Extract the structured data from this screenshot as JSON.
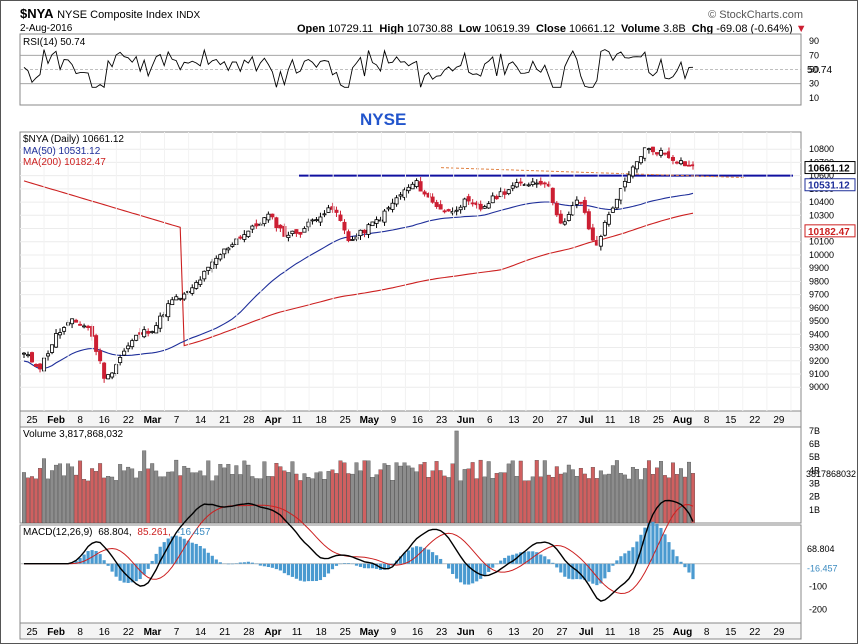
{
  "header": {
    "symbol": "$NYA",
    "name": "NYSE Composite Index",
    "exchange": "INDX",
    "date": "2-Aug-2016",
    "watermark": "© StockCharts.com",
    "open_label": "Open",
    "open": "10729.11",
    "high_label": "High",
    "high": "10730.88",
    "low_label": "Low",
    "low": "10619.39",
    "close_label": "Close",
    "close": "10661.12",
    "volume_label": "Volume",
    "volume": "3.8B",
    "chg_label": "Chg",
    "chg": "-69.08 (-0.64%)"
  },
  "annotation": "NYSE",
  "colors": {
    "up": "#000000",
    "down": "#cc1f33",
    "ma50": "#1f2f9a",
    "ma200": "#cc2020",
    "resistance": "#1010a0",
    "vol_up": "#8c8c8c",
    "vol_down": "#d06060",
    "macd_hist": "#4a9ad0",
    "bg": "#ffffff"
  },
  "chart_data": [
    {
      "type": "line",
      "title": "RSI(14) 50.74",
      "y_ticks": [
        "90",
        "70",
        "50",
        "30",
        "10"
      ],
      "ylim": [
        0,
        100
      ],
      "last_label": "50.74",
      "reference_lines": [
        70,
        50,
        30
      ]
    },
    {
      "type": "candlestick",
      "legend": [
        "$NYA (Daily) 10661.12",
        "MA(50) 10531.12",
        "MA(200) 10182.47"
      ],
      "ylim": [
        8820,
        10930
      ],
      "y_ticks": [
        "10800",
        "10700",
        "10600",
        "10500",
        "10400",
        "10300",
        "10200",
        "10100",
        "10000",
        "9900",
        "9800",
        "9700",
        "9600",
        "9500",
        "9400",
        "9300",
        "9200",
        "9100",
        "9000"
      ],
      "price_labels": [
        "10661.12",
        "10531.12",
        "10182.47"
      ],
      "x_ticks": [
        "25",
        "Feb",
        "8",
        "16",
        "22",
        "Mar",
        "7",
        "14",
        "21",
        "28",
        "Apr",
        "11",
        "18",
        "25",
        "May",
        "9",
        "16",
        "23",
        "Jun",
        "6",
        "13",
        "20",
        "27",
        "Jul",
        "11",
        "18",
        "25",
        "Aug",
        "8",
        "15",
        "22",
        "29"
      ],
      "resistance_level": 10600,
      "close_key": [
        9250,
        9150,
        9400,
        9500,
        9450,
        9050,
        9250,
        9400,
        9450,
        9650,
        9700,
        9850,
        10000,
        10120,
        10200,
        10300,
        10150,
        10180,
        10300,
        10350,
        10100,
        10200,
        10300,
        10450,
        10550,
        10400,
        10320,
        10400,
        10350,
        10450,
        10520,
        10550,
        10560,
        10200,
        10450,
        10050,
        10350,
        10580,
        10800,
        10780,
        10720,
        10661
      ]
    },
    {
      "type": "bar",
      "title": "Volume 3,817,868,032",
      "y_ticks": [
        "7B",
        "6B",
        "5B",
        "4B",
        "3B",
        "2B",
        "1B"
      ],
      "ylim": [
        0,
        7.3
      ],
      "last_label": "3817868032"
    },
    {
      "type": "line",
      "title_parts": [
        "MACD(12,26,9)",
        "68.804,",
        "85.261,",
        "-16.457"
      ],
      "y_ticks": [
        "-100",
        "-200"
      ],
      "price_labels": [
        "68.804",
        "-16.457"
      ],
      "ylim": [
        -260,
        170
      ]
    }
  ]
}
